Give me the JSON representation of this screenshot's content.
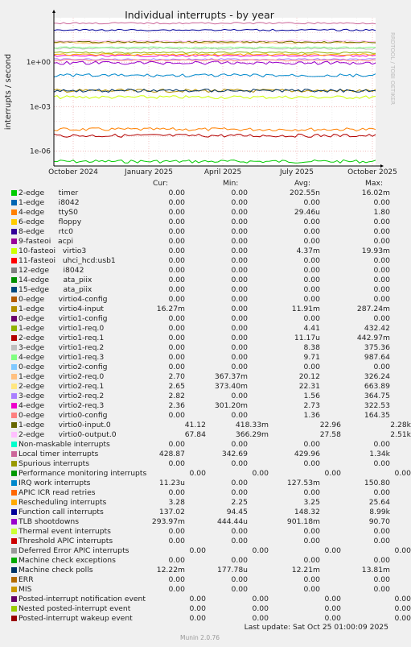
{
  "chart_data": {
    "type": "line",
    "title": "Individual interrupts - by year",
    "ylabel": "interrupts / second",
    "xlabel": "",
    "y_scale": "log",
    "ylim": [
      1e-07,
      1000
    ],
    "y_ticks": [
      "1e-06",
      "1e-03",
      "1e+00"
    ],
    "x_ticks": [
      "October 2024",
      "January 2025",
      "April 2025",
      "July 2025",
      "October 2025"
    ],
    "grid": true,
    "side_label": "RRDTOOL / TOBI OETIKER",
    "columns": [
      "Cur:",
      "Min:",
      "Avg:",
      "Max:"
    ],
    "series": [
      {
        "name": "2-edge      timer",
        "color": "#00cc00",
        "cur": "0.00",
        "min": "0.00",
        "avg": "202.55n",
        "max": "16.02m"
      },
      {
        "name": "1-edge      i8042",
        "color": "#0066b3",
        "cur": "0.00",
        "min": "0.00",
        "avg": "0.00",
        "max": "0.00"
      },
      {
        "name": "4-edge      ttyS0",
        "color": "#ff8000",
        "cur": "0.00",
        "min": "0.00",
        "avg": "29.46u",
        "max": "1.80"
      },
      {
        "name": "6-edge      floppy",
        "color": "#ffcc00",
        "cur": "0.00",
        "min": "0.00",
        "avg": "0.00",
        "max": "0.00"
      },
      {
        "name": "8-edge      rtc0",
        "color": "#330099",
        "cur": "0.00",
        "min": "0.00",
        "avg": "0.00",
        "max": "0.00"
      },
      {
        "name": "9-fasteoi   acpi",
        "color": "#990099",
        "cur": "0.00",
        "min": "0.00",
        "avg": "0.00",
        "max": "0.00"
      },
      {
        "name": "10-fasteoi   virtio3",
        "color": "#ccff00",
        "cur": "0.00",
        "min": "0.00",
        "avg": "4.37m",
        "max": "19.93m"
      },
      {
        "name": "11-fasteoi   uhci_hcd:usb1",
        "color": "#ff0000",
        "cur": "0.00",
        "min": "0.00",
        "avg": "0.00",
        "max": "0.00"
      },
      {
        "name": "12-edge      i8042",
        "color": "#808080",
        "cur": "0.00",
        "min": "0.00",
        "avg": "0.00",
        "max": "0.00"
      },
      {
        "name": "14-edge      ata_piix",
        "color": "#008f00",
        "cur": "0.00",
        "min": "0.00",
        "avg": "0.00",
        "max": "0.00"
      },
      {
        "name": "15-edge      ata_piix",
        "color": "#00487d",
        "cur": "0.00",
        "min": "0.00",
        "avg": "0.00",
        "max": "0.00"
      },
      {
        "name": "0-edge      virtio4-config",
        "color": "#b35a00",
        "cur": "0.00",
        "min": "0.00",
        "avg": "0.00",
        "max": "0.00"
      },
      {
        "name": "1-edge      virtio4-input",
        "color": "#b38f00",
        "cur": "16.27m",
        "min": "0.00",
        "avg": "11.91m",
        "max": "287.24m"
      },
      {
        "name": "0-edge      virtio1-config",
        "color": "#6b006b",
        "cur": "0.00",
        "min": "0.00",
        "avg": "0.00",
        "max": "0.00"
      },
      {
        "name": "1-edge      virtio1-req.0",
        "color": "#8fb300",
        "cur": "0.00",
        "min": "0.00",
        "avg": "4.41",
        "max": "432.42"
      },
      {
        "name": "2-edge      virtio1-req.1",
        "color": "#b30000",
        "cur": "0.00",
        "min": "0.00",
        "avg": "11.17u",
        "max": "442.97m"
      },
      {
        "name": "3-edge      virtio1-req.2",
        "color": "#bebebe",
        "cur": "0.00",
        "min": "0.00",
        "avg": "8.38",
        "max": "375.36"
      },
      {
        "name": "4-edge      virtio1-req.3",
        "color": "#80ff80",
        "cur": "0.00",
        "min": "0.00",
        "avg": "9.71",
        "max": "987.64"
      },
      {
        "name": "0-edge      virtio2-config",
        "color": "#80c9ff",
        "cur": "0.00",
        "min": "0.00",
        "avg": "0.00",
        "max": "0.00"
      },
      {
        "name": "1-edge      virtio2-req.0",
        "color": "#ffc080",
        "cur": "2.70",
        "min": "367.37m",
        "avg": "20.12",
        "max": "326.24"
      },
      {
        "name": "2-edge      virtio2-req.1",
        "color": "#ffe680",
        "cur": "2.65",
        "min": "373.40m",
        "avg": "22.31",
        "max": "663.89"
      },
      {
        "name": "3-edge      virtio2-req.2",
        "color": "#aa80ff",
        "cur": "2.82",
        "min": "0.00",
        "avg": "1.56",
        "max": "364.75"
      },
      {
        "name": "4-edge      virtio2-req.3",
        "color": "#ee00cc",
        "cur": "2.36",
        "min": "301.20m",
        "avg": "2.73",
        "max": "322.53"
      },
      {
        "name": "0-edge      virtio0-config",
        "color": "#ff8080",
        "cur": "0.00",
        "min": "0.00",
        "avg": "1.36",
        "max": "164.35"
      },
      {
        "name": "1-edge      virtio0-input.0",
        "color": "#666600",
        "cur": "41.12",
        "min": "418.33m",
        "avg": "22.96",
        "max": "2.28k"
      },
      {
        "name": "2-edge      virtio0-output.0",
        "color": "#ffbfff",
        "cur": "67.84",
        "min": "366.29m",
        "avg": "27.58",
        "max": "2.51k"
      },
      {
        "name": "Non-maskable interrupts",
        "color": "#00ffcc",
        "cur": "0.00",
        "min": "0.00",
        "avg": "0.00",
        "max": "0.00"
      },
      {
        "name": "Local timer interrupts",
        "color": "#cc6699",
        "cur": "428.87",
        "min": "342.69",
        "avg": "429.96",
        "max": "1.34k"
      },
      {
        "name": "Spurious interrupts",
        "color": "#999900",
        "cur": "0.00",
        "min": "0.00",
        "avg": "0.00",
        "max": "0.00"
      },
      {
        "name": "Performance monitoring interrupts",
        "color": "#009900",
        "cur": "0.00",
        "min": "0.00",
        "avg": "0.00",
        "max": "0.00"
      },
      {
        "name": "IRQ work interrupts",
        "color": "#0088cc",
        "cur": "11.23u",
        "min": "0.00",
        "avg": "127.53m",
        "max": "150.80"
      },
      {
        "name": "APIC ICR read retries",
        "color": "#ff6600",
        "cur": "0.00",
        "min": "0.00",
        "avg": "0.00",
        "max": "0.00"
      },
      {
        "name": "Rescheduling interrupts",
        "color": "#ffaa00",
        "cur": "3.28",
        "min": "2.25",
        "avg": "3.25",
        "max": "25.64"
      },
      {
        "name": "Function call interrupts",
        "color": "#000099",
        "cur": "137.02",
        "min": "94.45",
        "avg": "148.32",
        "max": "8.99k"
      },
      {
        "name": "TLB shootdowns",
        "color": "#9900cc",
        "cur": "293.97m",
        "min": "444.44u",
        "avg": "901.18m",
        "max": "90.70"
      },
      {
        "name": "Thermal event interrupts",
        "color": "#ccff33",
        "cur": "0.00",
        "min": "0.00",
        "avg": "0.00",
        "max": "0.00"
      },
      {
        "name": "Threshold APIC interrupts",
        "color": "#cc0000",
        "cur": "0.00",
        "min": "0.00",
        "avg": "0.00",
        "max": "0.00"
      },
      {
        "name": "Deferred Error APIC interrupts",
        "color": "#999999",
        "cur": "0.00",
        "min": "0.00",
        "avg": "0.00",
        "max": "0.00"
      },
      {
        "name": "Machine check exceptions",
        "color": "#00aa00",
        "cur": "0.00",
        "min": "0.00",
        "avg": "0.00",
        "max": "0.00"
      },
      {
        "name": "Machine check polls",
        "color": "#003366",
        "cur": "12.22m",
        "min": "177.78u",
        "avg": "12.21m",
        "max": "13.81m"
      },
      {
        "name": "ERR",
        "color": "#b36b00",
        "cur": "0.00",
        "min": "0.00",
        "avg": "0.00",
        "max": "0.00"
      },
      {
        "name": "MIS",
        "color": "#cc9900",
        "cur": "0.00",
        "min": "0.00",
        "avg": "0.00",
        "max": "0.00"
      },
      {
        "name": "Posted-interrupt notification event",
        "color": "#660066",
        "cur": "0.00",
        "min": "0.00",
        "avg": "0.00",
        "max": "0.00"
      },
      {
        "name": "Nested posted-interrupt event",
        "color": "#99cc00",
        "cur": "0.00",
        "min": "0.00",
        "avg": "0.00",
        "max": "0.00"
      },
      {
        "name": "Posted-interrupt wakeup event",
        "color": "#990000",
        "cur": "0.00",
        "min": "0.00",
        "avg": "0.00",
        "max": "0.00"
      }
    ]
  },
  "footer": {
    "last_update": "Last update: Sat Oct 25 01:00:09 2025",
    "generator": "Munin 2.0.76"
  }
}
